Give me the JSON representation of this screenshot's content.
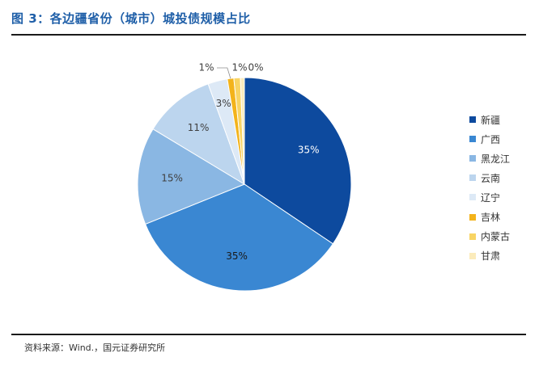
{
  "header": {
    "title": "图 3：各边疆省份（城市）城投债规模占比"
  },
  "source": {
    "text": "资料来源：Wind.，国元证券研究所"
  },
  "chart_data": {
    "type": "pie",
    "title": "图 3：各边疆省份（城市）城投债规模占比",
    "categories": [
      "新疆",
      "广西",
      "黑龙江",
      "云南",
      "辽宁",
      "吉林",
      "内蒙古",
      "甘肃"
    ],
    "values": [
      35,
      35,
      15,
      11,
      3,
      1,
      1,
      0
    ],
    "labels": [
      "35%",
      "35%",
      "15%",
      "11%",
      "3%",
      "1%",
      "1%",
      "0%"
    ],
    "colors": [
      "#0D4A9E",
      "#3A87D2",
      "#8AB7E3",
      "#BCD5EE",
      "#DDE9F6",
      "#F3B31B",
      "#F8D464",
      "#FBEBBB"
    ],
    "legend_position": "right"
  }
}
